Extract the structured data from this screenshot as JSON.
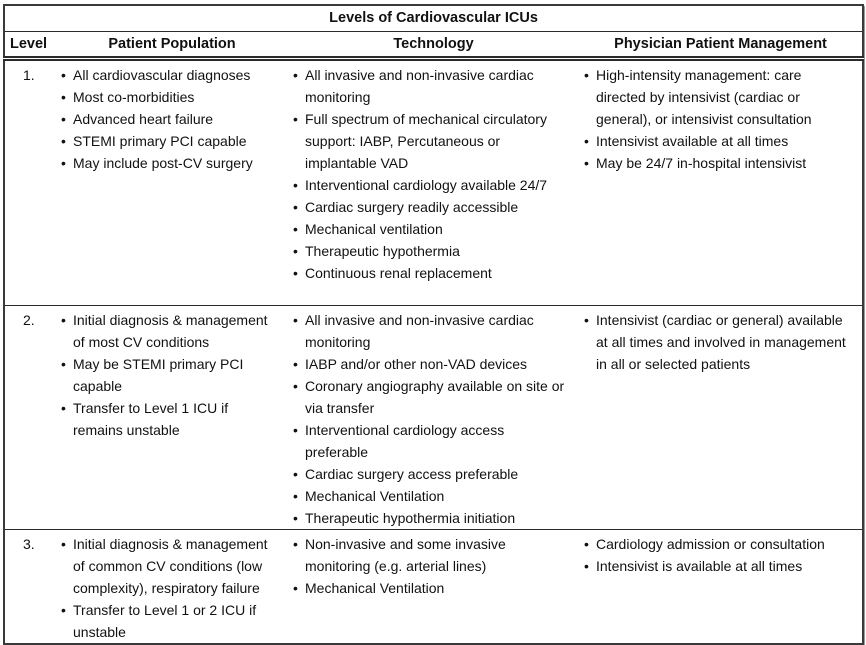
{
  "table": {
    "title": "Levels of Cardiovascular ICUs",
    "columns": [
      "Level",
      "Patient Population",
      "Technology",
      "Physician Patient Management"
    ],
    "rows": [
      {
        "level": "1.",
        "patient_population": [
          "All cardiovascular diagnoses",
          "Most co-morbidities",
          "Advanced heart failure",
          "STEMI primary PCI capable",
          "May include post-CV surgery"
        ],
        "technology": [
          "All invasive and non-invasive cardiac monitoring",
          "Full spectrum of mechanical circulatory support: IABP,  Percutaneous or implantable VAD",
          "Interventional cardiology available 24/7",
          "Cardiac surgery readily accessible",
          "Mechanical ventilation",
          "Therapeutic hypothermia",
          "Continuous renal replacement"
        ],
        "physician_patient_management": [
          "High-intensity management:  care directed by intensivist (cardiac or general), or intensivist consultation",
          "Intensivist available at all times",
          "May be 24/7 in-hospital intensivist"
        ]
      },
      {
        "level": "2.",
        "patient_population": [
          "Initial diagnosis & management of most CV conditions",
          "May be STEMI primary PCI capable",
          "Transfer to Level 1 ICU if remains unstable"
        ],
        "technology": [
          "All invasive and non-invasive cardiac monitoring",
          "IABP and/or other non-VAD devices",
          "Coronary angiography available on site or via transfer",
          "Interventional cardiology access preferable",
          "Cardiac surgery access preferable",
          "Mechanical Ventilation",
          "Therapeutic hypothermia initiation"
        ],
        "physician_patient_management": [
          "Intensivist (cardiac or general) available at all times and involved in management in all or selected patients"
        ]
      },
      {
        "level": "3.",
        "patient_population": [
          "Initial diagnosis & management of common CV conditions (low complexity), respiratory failure",
          "Transfer to Level 1 or 2 ICU if unstable"
        ],
        "technology": [
          "Non-invasive and some invasive monitoring (e.g. arterial lines)",
          "Mechanical Ventilation"
        ],
        "physician_patient_management": [
          "Cardiology admission or consultation",
          "Intensivist is available at all times"
        ]
      }
    ]
  }
}
